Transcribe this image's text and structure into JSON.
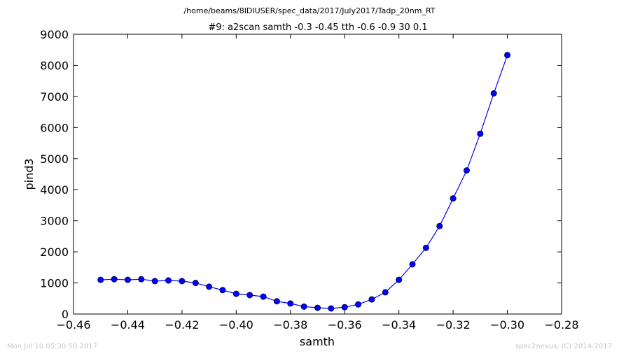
{
  "figure": {
    "suptitle": "/home/beams/8IDIUSER/spec_data/2017/July2017/Tadp_20nm_RT",
    "footer_left": "Mon Jul 10 05:30:50 2017",
    "footer_right": "spec2nexus, (C) 2014-2017"
  },
  "chart_data": {
    "type": "line",
    "title": "#9: a2scan  samth -0.3 -0.45  tth -0.6 -0.9  30 0.1",
    "xlabel": "samth",
    "ylabel": "pind3",
    "xlim": [
      -0.46,
      -0.28
    ],
    "ylim": [
      0,
      9000
    ],
    "xticks": [
      -0.46,
      -0.44,
      -0.42,
      -0.4,
      -0.38,
      -0.36,
      -0.34,
      -0.32,
      -0.3,
      -0.28
    ],
    "xticklabels": [
      "−0.46",
      "−0.44",
      "−0.42",
      "−0.40",
      "−0.38",
      "−0.36",
      "−0.34",
      "−0.32",
      "−0.30",
      "−0.28"
    ],
    "yticks": [
      0,
      1000,
      2000,
      3000,
      4000,
      5000,
      6000,
      7000,
      8000,
      9000
    ],
    "yticklabels": [
      "0",
      "1000",
      "2000",
      "3000",
      "4000",
      "5000",
      "6000",
      "7000",
      "8000",
      "9000"
    ],
    "grid": false,
    "series": [
      {
        "color": "#0000ff",
        "marker": "circle",
        "x": [
          -0.45,
          -0.445,
          -0.44,
          -0.435,
          -0.43,
          -0.425,
          -0.42,
          -0.415,
          -0.41,
          -0.405,
          -0.4,
          -0.395,
          -0.39,
          -0.385,
          -0.38,
          -0.375,
          -0.37,
          -0.365,
          -0.36,
          -0.355,
          -0.35,
          -0.345,
          -0.34,
          -0.335,
          -0.33,
          -0.325,
          -0.32,
          -0.315,
          -0.31,
          -0.305,
          -0.3
        ],
        "y": [
          1100,
          1120,
          1100,
          1120,
          1060,
          1080,
          1060,
          1000,
          880,
          770,
          650,
          610,
          560,
          410,
          340,
          240,
          200,
          180,
          220,
          310,
          470,
          700,
          1100,
          1600,
          2130,
          2830,
          3720,
          4620,
          5800,
          7100,
          8330
        ]
      }
    ]
  }
}
